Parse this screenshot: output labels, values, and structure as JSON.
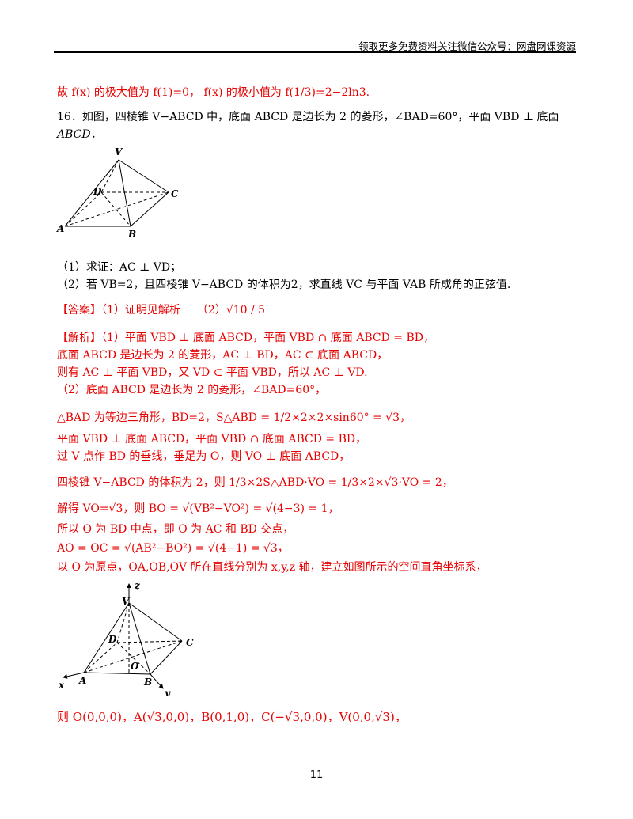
{
  "header": {
    "text": "领取更多免费资料关注微信公众号：网盘网课资源"
  },
  "lines": {
    "l1": "故 f(x) 的极大值为 f(1)=0， f(x) 的极小值为 f(1/3)=2−2ln3.",
    "l2": "16．如图，四棱锥 V−ABCD 中，底面 ABCD 是边长为 2 的菱形，∠BAD=60°，平面 VBD ⊥ 底面",
    "l3": "ABCD．",
    "q1": "（1）求证：AC ⊥ VD；",
    "q2": "（2）若 VB=2，且四棱锥 V−ABCD 的体积为2，求直线 VC 与平面 VAB 所成角的正弦值.",
    "ans": "【答案】（1）证明见解析　　（2）√10 / 5",
    "s1": "【解析】（1）平面 VBD ⊥ 底面 ABCD，平面 VBD ∩ 底面 ABCD = BD，",
    "s2": "底面 ABCD 是边长为 2 的菱形，AC ⊥ BD，AC ⊂ 底面 ABCD，",
    "s3": "则有 AC ⊥ 平面 VBD，又 VD ⊂ 平面 VBD，所以 AC ⊥ VD.",
    "s4": "（2）底面 ABCD 是边长为 2 的菱形，∠BAD=60°，",
    "s5": "△BAD 为等边三角形，BD=2，S△ABD = 1/2×2×2×sin60° = √3，",
    "s6": "平面 VBD ⊥ 底面 ABCD，平面 VBD ∩ 底面 ABCD = BD，",
    "s7": "过 V 点作 BD 的垂线，垂足为 O，则 VO ⊥ 底面 ABCD，",
    "s8": "四棱锥 V−ABCD 的体积为 2，则 1/3×2S△ABD·VO = 1/3×2×√3·VO = 2，",
    "s9": "解得 VO=√3，则 BO = √(VB²−VO²) = √(4−3) = 1，",
    "s10": "所以 O 为 BD 中点，即 O 为 AC 和 BD 交点，",
    "s11": "AO = OC = √(AB²−BO²) = √(4−1) = √3，",
    "s12": "以 O 为原点，OA,OB,OV 所在直线分别为 x,y,z 轴，建立如图所示的空间直角坐标系，",
    "s13": "则 O(0,0,0)，A(√3,0,0)，B(0,1,0)，C(−√3,0,0)，V(0,0,√3)，"
  },
  "figure1": {
    "labels": {
      "V": "V",
      "D": "D",
      "C": "C",
      "A": "A",
      "B": "B"
    }
  },
  "figure2": {
    "labels": {
      "z": "z",
      "V": "V",
      "D": "D",
      "C": "C",
      "O": "O",
      "x": "x",
      "A": "A",
      "B": "B",
      "y": "y"
    }
  },
  "page_number": "11"
}
